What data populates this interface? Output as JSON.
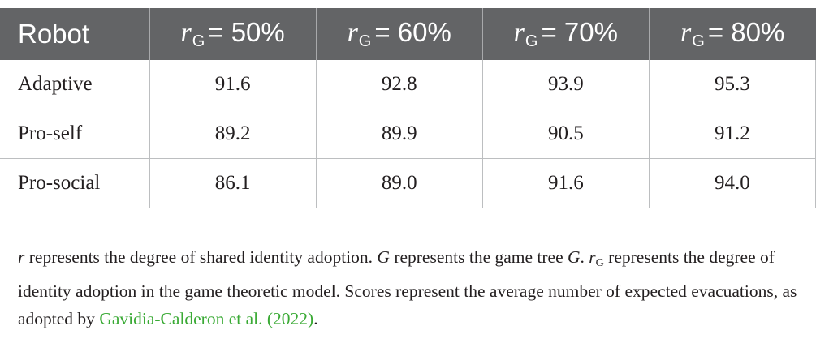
{
  "table": {
    "header": {
      "first": "Robot",
      "columns": [
        {
          "var": "r",
          "sub": "G",
          "rest": "= 50%"
        },
        {
          "var": "r",
          "sub": "G",
          "rest": "= 60%"
        },
        {
          "var": "r",
          "sub": "G",
          "rest": "= 70%"
        },
        {
          "var": "r",
          "sub": "G",
          "rest": "= 80%"
        }
      ]
    },
    "rows": [
      {
        "label": "Adaptive",
        "values": [
          "91.6",
          "92.8",
          "93.9",
          "95.3"
        ]
      },
      {
        "label": "Pro-self",
        "values": [
          "89.2",
          "89.9",
          "90.5",
          "91.2"
        ]
      },
      {
        "label": "Pro-social",
        "values": [
          "86.1",
          "89.0",
          "91.6",
          "94.0"
        ]
      }
    ]
  },
  "footnote": {
    "s1_var": "r",
    "s1_text": " represents the degree of shared identity adoption. ",
    "s2_var": "G",
    "s2_text": " represents the game tree ",
    "s2_var2": "G",
    "s2_sep": ". ",
    "s3_var": "r",
    "s3_sub": "G",
    "s3_text": " represents the degree of identity adoption in the game theoretic model. Scores represent the average number of expected evacuations, as adopted by ",
    "citation": "Gavidia-Calderon et al. (2022)",
    "end": "."
  },
  "colors": {
    "header_bg": "#636466",
    "citation": "#3aaa35",
    "grid": "#bcbec0"
  }
}
